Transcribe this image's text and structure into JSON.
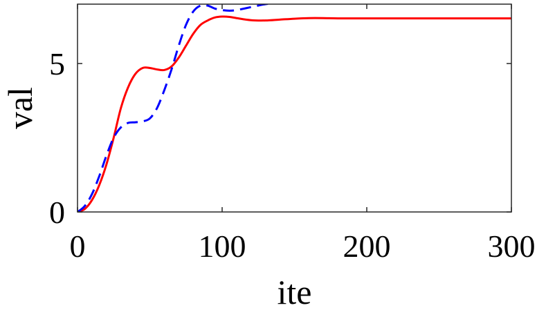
{
  "chart_data": {
    "type": "line",
    "xlabel": "ite",
    "ylabel": "val",
    "xlim": [
      0,
      300
    ],
    "ylim": [
      0,
      7
    ],
    "xticks": [
      0,
      100,
      200,
      300
    ],
    "yticks": [
      0,
      5
    ],
    "xtick_labels": [
      "0",
      "100",
      "200",
      "300"
    ],
    "ytick_labels": [
      "0",
      "5"
    ],
    "grid": false,
    "legend": "none",
    "series": [
      {
        "color": "#ff0000",
        "style": "solid",
        "x": [
          0,
          5,
          10,
          15,
          20,
          25,
          30,
          35,
          40,
          45,
          50,
          55,
          60,
          65,
          70,
          75,
          80,
          85,
          90,
          95,
          100,
          105,
          110,
          120,
          130,
          140,
          150,
          160,
          170,
          180,
          200,
          220,
          240,
          260,
          280,
          300
        ],
        "y": [
          0,
          0.1,
          0.4,
          0.9,
          1.6,
          2.5,
          3.5,
          4.2,
          4.65,
          4.85,
          4.85,
          4.8,
          4.78,
          4.9,
          5.2,
          5.6,
          6.0,
          6.3,
          6.45,
          6.55,
          6.58,
          6.57,
          6.53,
          6.46,
          6.45,
          6.48,
          6.51,
          6.53,
          6.53,
          6.52,
          6.52,
          6.52,
          6.52,
          6.52,
          6.52,
          6.52
        ]
      },
      {
        "color": "#0000ff",
        "style": "dashed",
        "x": [
          0,
          5,
          10,
          15,
          20,
          25,
          30,
          35,
          40,
          45,
          50,
          55,
          60,
          65,
          70,
          75,
          80,
          85,
          90,
          95,
          100,
          105,
          110,
          120,
          130,
          140,
          150,
          160,
          180,
          200,
          250,
          300
        ],
        "y": [
          0,
          0.2,
          0.6,
          1.2,
          1.9,
          2.5,
          2.85,
          3.0,
          3.02,
          3.05,
          3.15,
          3.5,
          4.1,
          4.8,
          5.6,
          6.3,
          6.75,
          6.95,
          6.95,
          6.85,
          6.8,
          6.78,
          6.8,
          6.9,
          7.0,
          7.05,
          7.07,
          7.07,
          7.07,
          7.07,
          7.07,
          7.07
        ]
      }
    ]
  }
}
